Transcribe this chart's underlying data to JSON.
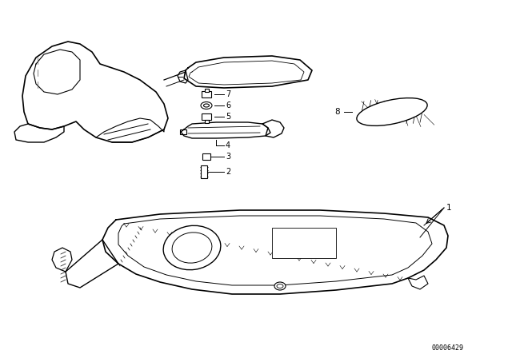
{
  "background_color": "#ffffff",
  "line_color": "#000000",
  "catalog_number": "00006429",
  "figsize": [
    6.4,
    4.48
  ],
  "dpi": 100
}
